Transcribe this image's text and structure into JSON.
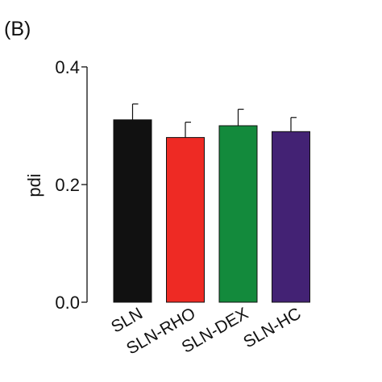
{
  "chart_data": {
    "type": "bar",
    "panel_label": "(B)",
    "title": "",
    "xlabel": "",
    "ylabel": "pdi",
    "ylim": [
      0.0,
      0.4
    ],
    "yticks": [
      "0.0",
      "0.2",
      "0.4"
    ],
    "ytick_values": [
      0.0,
      0.2,
      0.4
    ],
    "grid": false,
    "error_bars": true,
    "categories": [
      "SLN",
      "SLN-RHO",
      "SLN-DEX",
      "SLN-HC"
    ],
    "values": [
      0.31,
      0.28,
      0.3,
      0.29
    ],
    "errors": [
      0.027,
      0.026,
      0.028,
      0.024
    ],
    "colors": [
      "#111111",
      "#ee2a24",
      "#138a3c",
      "#432274"
    ]
  }
}
